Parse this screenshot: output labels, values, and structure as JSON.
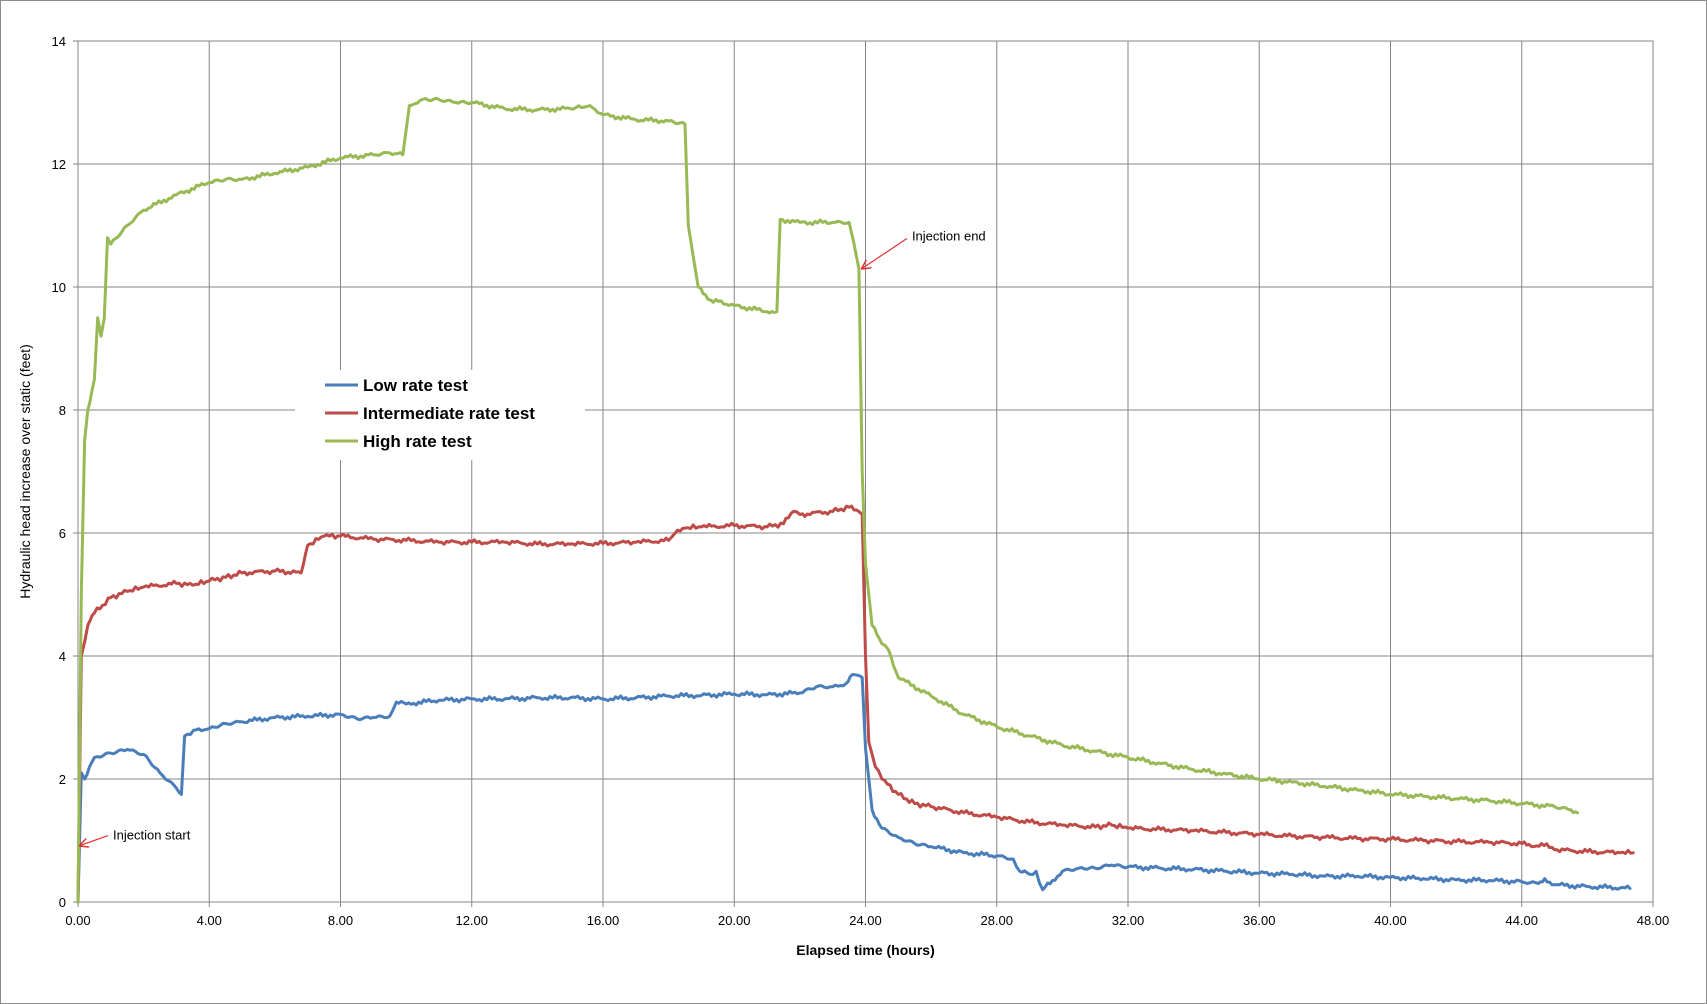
{
  "chart_data": {
    "type": "line",
    "title": "",
    "xlabel": "Elapsed time (hours)",
    "ylabel": "Hydraulic head increase over  static (feet)",
    "xlim": [
      0,
      48
    ],
    "ylim": [
      0,
      14
    ],
    "xticks": [
      "0.00",
      "4.00",
      "8.00",
      "12.00",
      "16.00",
      "20.00",
      "24.00",
      "28.00",
      "32.00",
      "36.00",
      "40.00",
      "44.00",
      "48.00"
    ],
    "yticks": [
      "0",
      "2",
      "4",
      "6",
      "8",
      "10",
      "12",
      "14"
    ],
    "grid": true,
    "legend_position": "upper-left inside plot",
    "annotations": [
      {
        "text": "Injection start",
        "x": 0.0,
        "y": 0.95
      },
      {
        "text": "Injection end",
        "x": 23.8,
        "y": 10.3
      }
    ],
    "series": [
      {
        "name": "Low rate test",
        "color": "#4a7ebb",
        "points": [
          [
            0,
            0
          ],
          [
            0.1,
            2.1
          ],
          [
            0.2,
            2.0
          ],
          [
            0.5,
            2.35
          ],
          [
            1,
            2.42
          ],
          [
            1.5,
            2.48
          ],
          [
            2,
            2.4
          ],
          [
            2.5,
            2.1
          ],
          [
            3,
            1.85
          ],
          [
            3.15,
            1.75
          ],
          [
            3.25,
            2.7
          ],
          [
            3.6,
            2.8
          ],
          [
            4,
            2.82
          ],
          [
            4.5,
            2.9
          ],
          [
            5,
            2.93
          ],
          [
            6,
            3.0
          ],
          [
            7,
            3.02
          ],
          [
            8,
            3.05
          ],
          [
            8.5,
            2.98
          ],
          [
            9,
            3.0
          ],
          [
            9.5,
            3.02
          ],
          [
            9.7,
            3.25
          ],
          [
            10,
            3.22
          ],
          [
            11,
            3.28
          ],
          [
            12,
            3.3
          ],
          [
            13,
            3.3
          ],
          [
            14,
            3.32
          ],
          [
            15,
            3.32
          ],
          [
            16,
            3.3
          ],
          [
            17,
            3.32
          ],
          [
            18,
            3.35
          ],
          [
            19,
            3.36
          ],
          [
            20,
            3.38
          ],
          [
            21,
            3.37
          ],
          [
            22,
            3.4
          ],
          [
            22.5,
            3.5
          ],
          [
            23,
            3.5
          ],
          [
            23.4,
            3.55
          ],
          [
            23.6,
            3.7
          ],
          [
            23.9,
            3.65
          ],
          [
            24,
            2.5
          ],
          [
            24.2,
            1.5
          ],
          [
            24.5,
            1.2
          ],
          [
            25,
            1.05
          ],
          [
            25.5,
            0.95
          ],
          [
            26,
            0.9
          ],
          [
            27,
            0.8
          ],
          [
            28,
            0.75
          ],
          [
            28.5,
            0.7
          ],
          [
            28.7,
            0.5
          ],
          [
            29,
            0.45
          ],
          [
            29.2,
            0.5
          ],
          [
            29.4,
            0.2
          ],
          [
            29.7,
            0.35
          ],
          [
            30,
            0.5
          ],
          [
            30.5,
            0.55
          ],
          [
            31,
            0.55
          ],
          [
            31.5,
            0.6
          ],
          [
            32,
            0.57
          ],
          [
            33,
            0.55
          ],
          [
            34,
            0.53
          ],
          [
            35,
            0.5
          ],
          [
            36,
            0.47
          ],
          [
            37,
            0.45
          ],
          [
            38,
            0.42
          ],
          [
            39,
            0.42
          ],
          [
            40,
            0.4
          ],
          [
            41,
            0.38
          ],
          [
            42,
            0.36
          ],
          [
            43,
            0.35
          ],
          [
            44,
            0.33
          ],
          [
            44.5,
            0.3
          ],
          [
            44.7,
            0.38
          ],
          [
            45,
            0.28
          ],
          [
            46,
            0.25
          ],
          [
            47,
            0.23
          ],
          [
            47.3,
            0.22
          ]
        ]
      },
      {
        "name": "Intermediate rate test",
        "color": "#be4b48",
        "points": [
          [
            0,
            0
          ],
          [
            0.1,
            4.0
          ],
          [
            0.3,
            4.5
          ],
          [
            0.5,
            4.7
          ],
          [
            1,
            4.95
          ],
          [
            1.5,
            5.05
          ],
          [
            2,
            5.12
          ],
          [
            3,
            5.18
          ],
          [
            3.5,
            5.15
          ],
          [
            4,
            5.22
          ],
          [
            4.5,
            5.28
          ],
          [
            5,
            5.35
          ],
          [
            6,
            5.38
          ],
          [
            6.8,
            5.35
          ],
          [
            7,
            5.8
          ],
          [
            7.5,
            5.95
          ],
          [
            8,
            5.95
          ],
          [
            9,
            5.9
          ],
          [
            10,
            5.88
          ],
          [
            11,
            5.85
          ],
          [
            12,
            5.85
          ],
          [
            13,
            5.85
          ],
          [
            14,
            5.82
          ],
          [
            15,
            5.82
          ],
          [
            16,
            5.83
          ],
          [
            17,
            5.85
          ],
          [
            18,
            5.88
          ],
          [
            18.2,
            6.0
          ],
          [
            18.5,
            6.08
          ],
          [
            19,
            6.1
          ],
          [
            20,
            6.12
          ],
          [
            21,
            6.1
          ],
          [
            21.5,
            6.15
          ],
          [
            21.8,
            6.35
          ],
          [
            22,
            6.3
          ],
          [
            23,
            6.35
          ],
          [
            23.5,
            6.42
          ],
          [
            23.8,
            6.35
          ],
          [
            23.9,
            6.3
          ],
          [
            24,
            4.0
          ],
          [
            24.1,
            2.6
          ],
          [
            24.3,
            2.2
          ],
          [
            24.5,
            2.0
          ],
          [
            25,
            1.75
          ],
          [
            25.5,
            1.6
          ],
          [
            26,
            1.55
          ],
          [
            27,
            1.45
          ],
          [
            28,
            1.38
          ],
          [
            29,
            1.3
          ],
          [
            30,
            1.25
          ],
          [
            31,
            1.22
          ],
          [
            31.5,
            1.25
          ],
          [
            32,
            1.2
          ],
          [
            33,
            1.18
          ],
          [
            34,
            1.16
          ],
          [
            35,
            1.13
          ],
          [
            36,
            1.1
          ],
          [
            37,
            1.07
          ],
          [
            38,
            1.05
          ],
          [
            39,
            1.03
          ],
          [
            40,
            1.02
          ],
          [
            41,
            1.0
          ],
          [
            42,
            0.98
          ],
          [
            43,
            0.97
          ],
          [
            44,
            0.95
          ],
          [
            44.3,
            0.9
          ],
          [
            44.6,
            0.95
          ],
          [
            45,
            0.85
          ],
          [
            46,
            0.82
          ],
          [
            47,
            0.8
          ],
          [
            47.4,
            0.8
          ]
        ]
      },
      {
        "name": "High rate test",
        "color": "#98b954",
        "points": [
          [
            0,
            0
          ],
          [
            0.1,
            5.0
          ],
          [
            0.2,
            7.5
          ],
          [
            0.3,
            8.0
          ],
          [
            0.5,
            8.5
          ],
          [
            0.6,
            9.5
          ],
          [
            0.7,
            9.2
          ],
          [
            0.8,
            9.5
          ],
          [
            0.9,
            10.8
          ],
          [
            1.0,
            10.7
          ],
          [
            1.5,
            11.0
          ],
          [
            2,
            11.25
          ],
          [
            3,
            11.5
          ],
          [
            4,
            11.7
          ],
          [
            4.5,
            11.75
          ],
          [
            5,
            11.75
          ],
          [
            6,
            11.85
          ],
          [
            7,
            11.95
          ],
          [
            8,
            12.1
          ],
          [
            9,
            12.15
          ],
          [
            9.5,
            12.18
          ],
          [
            9.9,
            12.15
          ],
          [
            10.1,
            12.95
          ],
          [
            10.5,
            13.05
          ],
          [
            11,
            13.05
          ],
          [
            11.5,
            13.0
          ],
          [
            12,
            13.0
          ],
          [
            13,
            12.9
          ],
          [
            14,
            12.88
          ],
          [
            15,
            12.9
          ],
          [
            15.6,
            12.95
          ],
          [
            16,
            12.8
          ],
          [
            17,
            12.72
          ],
          [
            18,
            12.7
          ],
          [
            18.5,
            12.65
          ],
          [
            18.6,
            11.0
          ],
          [
            18.9,
            10.0
          ],
          [
            19.2,
            9.8
          ],
          [
            20,
            9.7
          ],
          [
            21,
            9.6
          ],
          [
            21.3,
            9.6
          ],
          [
            21.4,
            11.1
          ],
          [
            22,
            11.05
          ],
          [
            23,
            11.05
          ],
          [
            23.5,
            11.05
          ],
          [
            23.8,
            10.3
          ],
          [
            23.9,
            7.0
          ],
          [
            24,
            5.5
          ],
          [
            24.2,
            4.5
          ],
          [
            24.5,
            4.2
          ],
          [
            24.7,
            4.1
          ],
          [
            25,
            3.65
          ],
          [
            26,
            3.35
          ],
          [
            27,
            3.05
          ],
          [
            28,
            2.85
          ],
          [
            29,
            2.7
          ],
          [
            30,
            2.55
          ],
          [
            31,
            2.45
          ],
          [
            32,
            2.35
          ],
          [
            33,
            2.25
          ],
          [
            34,
            2.15
          ],
          [
            35,
            2.08
          ],
          [
            36,
            2.0
          ],
          [
            37,
            1.95
          ],
          [
            38,
            1.88
          ],
          [
            39,
            1.82
          ],
          [
            40,
            1.75
          ],
          [
            41,
            1.72
          ],
          [
            42,
            1.68
          ],
          [
            43,
            1.65
          ],
          [
            44,
            1.6
          ],
          [
            45,
            1.55
          ],
          [
            45.5,
            1.5
          ],
          [
            45.7,
            1.45
          ]
        ]
      }
    ]
  }
}
